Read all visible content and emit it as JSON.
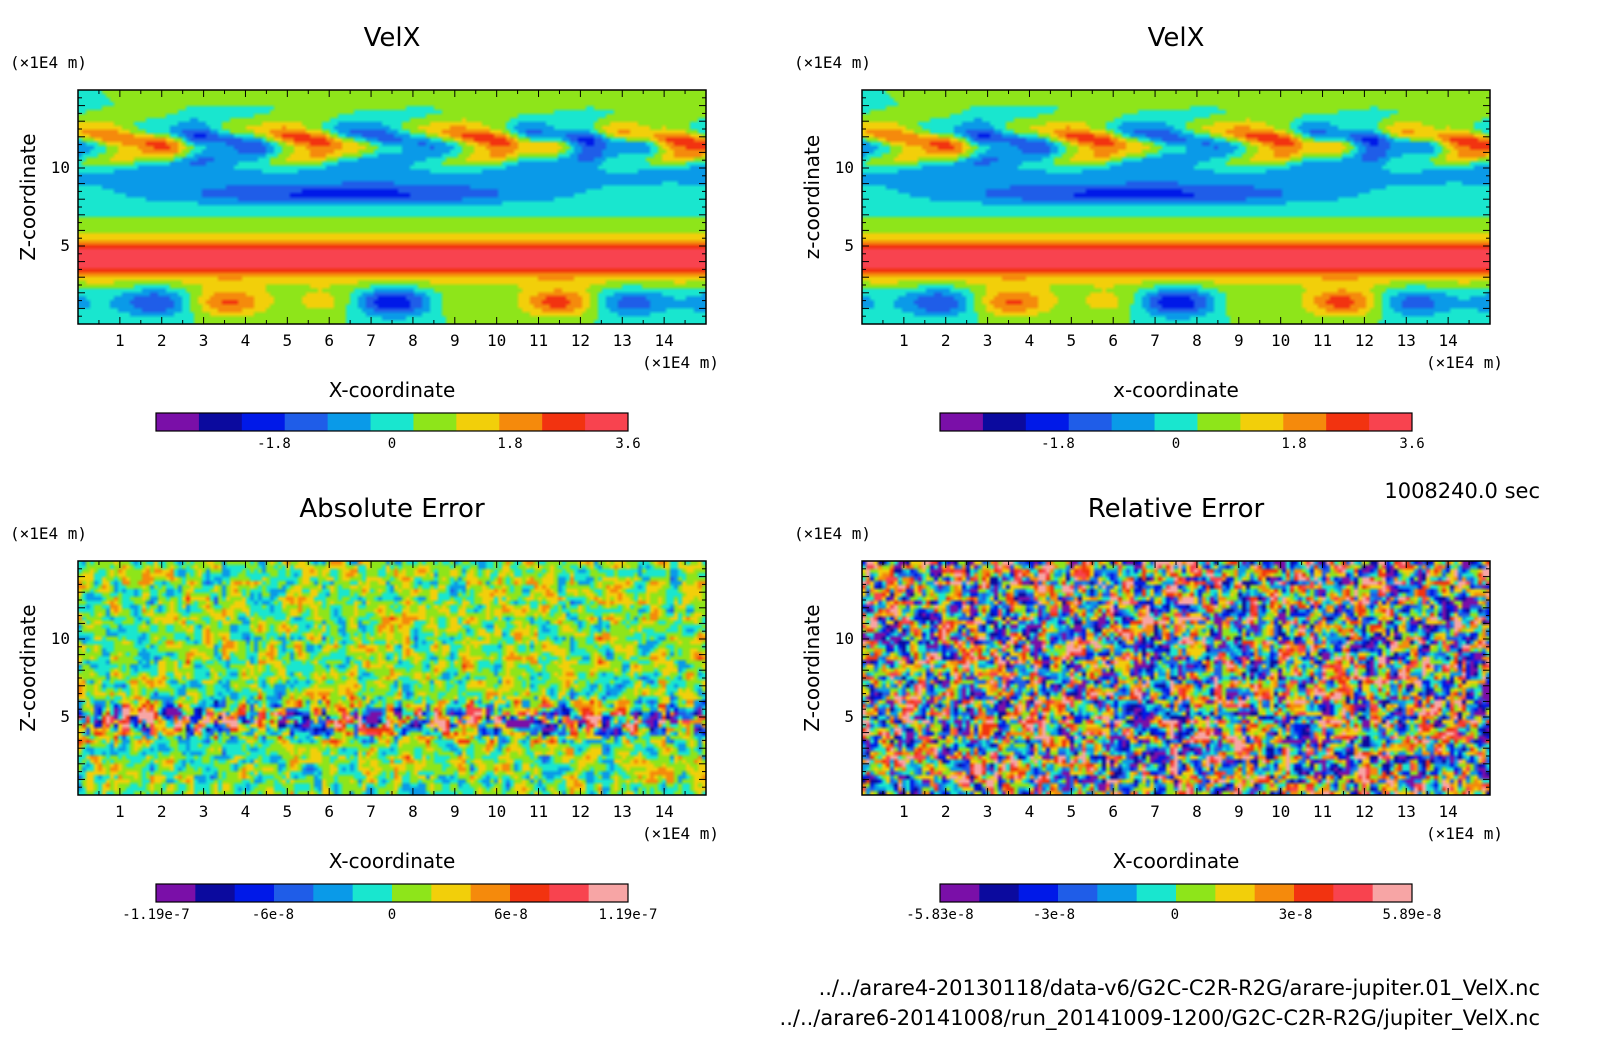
{
  "timestamp": "1008240.0 sec",
  "footer": {
    "line1": "../../arare4-20130118/data-v6/G2C-C2R-R2G/arare-jupiter.01_VelX.nc",
    "line2": "../../arare6-20141008/run_20141009-1200/G2C-C2R-R2G/jupiter_VelX.nc"
  },
  "chart_data": [
    {
      "type": "heatmap",
      "title": "VelX",
      "xlabel": "X-coordinate",
      "ylabel": "Z-coordinate",
      "x_unit": "(×1E4 m)",
      "y_unit": "(×1E4 m)",
      "xlim": [
        0,
        15
      ],
      "ylim": [
        0,
        15
      ],
      "xticks": [
        "1",
        "2",
        "3",
        "4",
        "5",
        "6",
        "7",
        "8",
        "9",
        "10",
        "11",
        "12",
        "13",
        "14"
      ],
      "yticks": [
        "5",
        "10"
      ],
      "field": "jet",
      "colorbar": {
        "colors": [
          "#7a0fa8",
          "#0b0a9e",
          "#0019e8",
          "#1f5de8",
          "#0a9ae8",
          "#19e6cf",
          "#8ee51a",
          "#f2cf0a",
          "#f58a0c",
          "#f23310",
          "#f8434f"
        ],
        "tick_labels": [
          "-1.8",
          "0",
          "1.8",
          "3.6"
        ],
        "tick_values": [
          -1.8,
          0,
          1.8,
          3.6
        ],
        "range": [
          -3.6,
          3.6
        ]
      }
    },
    {
      "type": "heatmap",
      "title": "VelX",
      "xlabel": "x-coordinate",
      "ylabel": "z-coordinate",
      "x_unit": "(×1E4 m)",
      "y_unit": "(×1E4 m)",
      "xlim": [
        0,
        15
      ],
      "ylim": [
        0,
        15
      ],
      "xticks": [
        "1",
        "2",
        "3",
        "4",
        "5",
        "6",
        "7",
        "8",
        "9",
        "10",
        "11",
        "12",
        "13",
        "14"
      ],
      "yticks": [
        "5",
        "10"
      ],
      "field": "jet",
      "colorbar": {
        "colors": [
          "#7a0fa8",
          "#0b0a9e",
          "#0019e8",
          "#1f5de8",
          "#0a9ae8",
          "#19e6cf",
          "#8ee51a",
          "#f2cf0a",
          "#f58a0c",
          "#f23310",
          "#f8434f"
        ],
        "tick_labels": [
          "-1.8",
          "0",
          "1.8",
          "3.6"
        ],
        "tick_values": [
          -1.8,
          0,
          1.8,
          3.6
        ],
        "range": [
          -3.6,
          3.6
        ]
      }
    },
    {
      "type": "heatmap",
      "title": "Absolute Error",
      "xlabel": "X-coordinate",
      "ylabel": "Z-coordinate",
      "x_unit": "(×1E4 m)",
      "y_unit": "(×1E4 m)",
      "xlim": [
        0,
        15
      ],
      "ylim": [
        0,
        15
      ],
      "xticks": [
        "1",
        "2",
        "3",
        "4",
        "5",
        "6",
        "7",
        "8",
        "9",
        "10",
        "11",
        "12",
        "13",
        "14"
      ],
      "yticks": [
        "5",
        "10"
      ],
      "field": "abs",
      "colorbar": {
        "colors": [
          "#7a0fa8",
          "#0b0a9e",
          "#0019e8",
          "#1f5de8",
          "#0a9ae8",
          "#19e6cf",
          "#8ee51a",
          "#f2cf0a",
          "#f58a0c",
          "#f23310",
          "#f8434f",
          "#f7a5a5"
        ],
        "tick_labels": [
          "-1.19e-7",
          "-6e-8",
          "0",
          "6e-8",
          "1.19e-7"
        ],
        "tick_values": [
          -1.19e-07,
          -6e-08,
          0,
          6e-08,
          1.19e-07
        ],
        "range": [
          -1.19e-07,
          1.19e-07
        ]
      }
    },
    {
      "type": "heatmap",
      "title": "Relative Error",
      "xlabel": "X-coordinate",
      "ylabel": "Z-coordinate",
      "x_unit": "(×1E4 m)",
      "y_unit": "(×1E4 m)",
      "xlim": [
        0,
        15
      ],
      "ylim": [
        0,
        15
      ],
      "xticks": [
        "1",
        "2",
        "3",
        "4",
        "5",
        "6",
        "7",
        "8",
        "9",
        "10",
        "11",
        "12",
        "13",
        "14"
      ],
      "yticks": [
        "5",
        "10"
      ],
      "field": "rel",
      "colorbar": {
        "colors": [
          "#7a0fa8",
          "#0b0a9e",
          "#0019e8",
          "#1f5de8",
          "#0a9ae8",
          "#19e6cf",
          "#8ee51a",
          "#f2cf0a",
          "#f58a0c",
          "#f23310",
          "#f8434f",
          "#f7a5a5"
        ],
        "tick_labels": [
          "-5.83e-8",
          "-3e-8",
          "0",
          "3e-8",
          "5.89e-8"
        ],
        "tick_values": [
          -5.83e-08,
          -3e-08,
          0,
          3e-08,
          5.89e-08
        ],
        "range": [
          -5.83e-08,
          5.89e-08
        ]
      }
    }
  ]
}
